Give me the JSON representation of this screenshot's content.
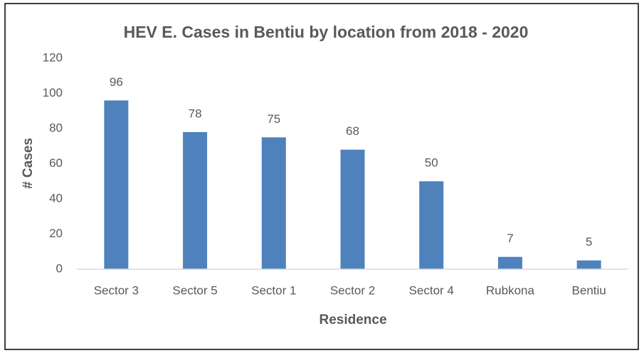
{
  "chart_data": {
    "type": "bar",
    "title": "HEV E. Cases in Bentiu by location from 2018  - 2020",
    "x_label": "Residence",
    "y_label": "# Cases",
    "categories": [
      "Sector 3",
      "Sector 5",
      "Sector 1",
      "Sector 2",
      "Sector 4",
      "Rubkona",
      "Bentiu"
    ],
    "values": [
      96,
      78,
      75,
      68,
      50,
      7,
      5
    ],
    "color": "#4f81bd",
    "ylim": [
      0,
      120
    ],
    "yticks": [
      0,
      20,
      40,
      60,
      80,
      100,
      120
    ],
    "grid": false,
    "data_labels": true
  }
}
